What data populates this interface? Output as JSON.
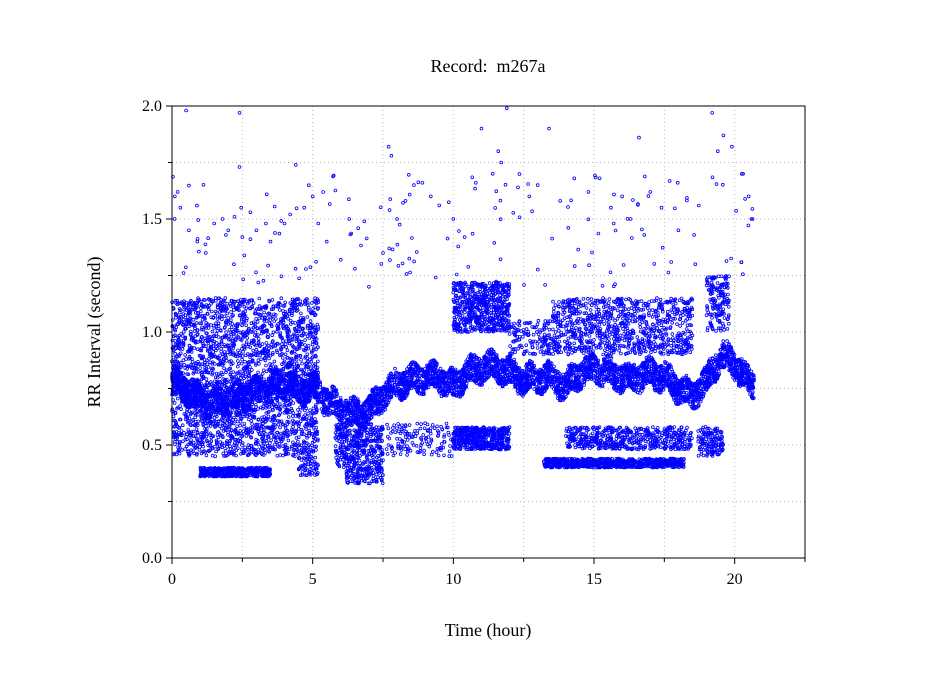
{
  "chart_data": {
    "type": "scatter",
    "title": "Record:  m267a",
    "xlabel": "Time (hour)",
    "ylabel": "RR Interval (second)",
    "xlim": [
      0,
      22.5
    ],
    "ylim": [
      0,
      2.0
    ],
    "x_ticks": [
      0,
      5,
      10,
      15,
      20
    ],
    "x_minor_ticks": [
      2.5,
      7.5,
      12.5,
      17.5,
      22.5
    ],
    "y_ticks": [
      0.0,
      0.5,
      1.0,
      1.5,
      2.0
    ],
    "y_tick_labels": [
      "0.0",
      "0.5",
      "1.0",
      "1.5",
      "2.0"
    ],
    "y_minor_ticks": [
      0.25,
      0.75,
      1.25,
      1.75
    ],
    "grid": true,
    "marker_color": "#0000ff",
    "series": [
      {
        "values_description_x_hours_y_seconds": "dense RR interval trace sampled from figure",
        "trend": [
          [
            0.0,
            0.78
          ],
          [
            0.5,
            0.75
          ],
          [
            1.0,
            0.7
          ],
          [
            1.5,
            0.68
          ],
          [
            2.0,
            0.7
          ],
          [
            2.5,
            0.72
          ],
          [
            3.0,
            0.73
          ],
          [
            3.5,
            0.75
          ],
          [
            4.0,
            0.78
          ],
          [
            4.5,
            0.74
          ],
          [
            5.0,
            0.76
          ],
          [
            5.5,
            0.7
          ],
          [
            6.0,
            0.66
          ],
          [
            6.5,
            0.64
          ],
          [
            7.0,
            0.65
          ],
          [
            7.5,
            0.72
          ],
          [
            8.0,
            0.77
          ],
          [
            8.5,
            0.79
          ],
          [
            9.0,
            0.8
          ],
          [
            9.5,
            0.8
          ],
          [
            10.0,
            0.76
          ],
          [
            10.5,
            0.82
          ],
          [
            11.0,
            0.84
          ],
          [
            11.5,
            0.85
          ],
          [
            12.0,
            0.82
          ],
          [
            12.5,
            0.79
          ],
          [
            13.0,
            0.8
          ],
          [
            13.5,
            0.8
          ],
          [
            14.0,
            0.76
          ],
          [
            14.5,
            0.82
          ],
          [
            15.0,
            0.84
          ],
          [
            15.5,
            0.82
          ],
          [
            16.0,
            0.8
          ],
          [
            16.5,
            0.8
          ],
          [
            17.0,
            0.82
          ],
          [
            17.5,
            0.8
          ],
          [
            18.0,
            0.75
          ],
          [
            18.5,
            0.72
          ],
          [
            19.0,
            0.78
          ],
          [
            19.5,
            0.9
          ],
          [
            20.0,
            0.86
          ],
          [
            20.5,
            0.78
          ],
          [
            20.7,
            0.76
          ]
        ],
        "bands": [
          {
            "x": [
              0.0,
              5.2
            ],
            "y": [
              0.45,
              1.15
            ],
            "density": 2600
          },
          {
            "x": [
              1.0,
              3.5
            ],
            "y": [
              0.36,
              0.4
            ],
            "density": 420
          },
          {
            "x": [
              4.5,
              5.2
            ],
            "y": [
              0.36,
              0.45
            ],
            "density": 60
          },
          {
            "x": [
              5.8,
              7.5
            ],
            "y": [
              0.4,
              0.6
            ],
            "density": 380
          },
          {
            "x": [
              6.2,
              7.5
            ],
            "y": [
              0.33,
              0.4
            ],
            "density": 120
          },
          {
            "x": [
              7.6,
              10.0
            ],
            "y": [
              0.45,
              0.6
            ],
            "density": 140
          },
          {
            "x": [
              10.0,
              12.0
            ],
            "y": [
              0.48,
              0.58
            ],
            "density": 480
          },
          {
            "x": [
              10.0,
              12.0
            ],
            "y": [
              1.0,
              1.22
            ],
            "density": 620
          },
          {
            "x": [
              12.0,
              13.5
            ],
            "y": [
              0.9,
              1.05
            ],
            "density": 140
          },
          {
            "x": [
              13.2,
              18.2
            ],
            "y": [
              0.4,
              0.44
            ],
            "density": 780
          },
          {
            "x": [
              13.5,
              18.5
            ],
            "y": [
              0.9,
              1.15
            ],
            "density": 900
          },
          {
            "x": [
              14.0,
              18.5
            ],
            "y": [
              0.48,
              0.58
            ],
            "density": 520
          },
          {
            "x": [
              18.7,
              19.6
            ],
            "y": [
              0.45,
              0.58
            ],
            "density": 140
          },
          {
            "x": [
              19.0,
              19.8
            ],
            "y": [
              1.0,
              1.25
            ],
            "density": 160
          }
        ],
        "sparse_points": [
          [
            0.1,
            1.6
          ],
          [
            0.2,
            1.62
          ],
          [
            0.3,
            1.55
          ],
          [
            0.5,
            1.98
          ],
          [
            0.6,
            1.45
          ],
          [
            0.9,
            1.4
          ],
          [
            1.2,
            1.35
          ],
          [
            1.5,
            1.48
          ],
          [
            1.8,
            1.5
          ],
          [
            2.0,
            1.45
          ],
          [
            2.2,
            1.3
          ],
          [
            2.4,
            1.97
          ],
          [
            2.4,
            1.73
          ],
          [
            2.5,
            1.42
          ],
          [
            3.0,
            1.45
          ],
          [
            3.5,
            1.4
          ],
          [
            4.0,
            1.48
          ],
          [
            4.2,
            1.52
          ],
          [
            4.4,
            1.74
          ],
          [
            4.7,
            1.55
          ],
          [
            5.0,
            1.6
          ],
          [
            5.2,
            1.48
          ],
          [
            5.5,
            1.4
          ],
          [
            6.0,
            1.32
          ],
          [
            6.3,
            1.5
          ],
          [
            6.5,
            1.28
          ],
          [
            7.0,
            1.2
          ],
          [
            7.5,
            1.35
          ],
          [
            7.7,
            1.82
          ],
          [
            7.8,
            1.78
          ],
          [
            8.0,
            1.5
          ],
          [
            8.3,
            1.58
          ],
          [
            8.6,
            1.65
          ],
          [
            8.9,
            1.66
          ],
          [
            9.2,
            1.6
          ],
          [
            9.5,
            1.56
          ],
          [
            10.0,
            1.5
          ],
          [
            10.4,
            1.42
          ],
          [
            10.8,
            1.66
          ],
          [
            11.0,
            1.9
          ],
          [
            11.4,
            1.7
          ],
          [
            11.6,
            1.8
          ],
          [
            11.7,
            1.75
          ],
          [
            11.9,
            1.99
          ],
          [
            12.3,
            1.64
          ],
          [
            12.7,
            1.6
          ],
          [
            13.0,
            1.65
          ],
          [
            13.4,
            1.9
          ],
          [
            13.8,
            1.58
          ],
          [
            14.3,
            1.68
          ],
          [
            14.8,
            1.62
          ],
          [
            15.2,
            1.68
          ],
          [
            15.6,
            1.55
          ],
          [
            16.0,
            1.6
          ],
          [
            16.3,
            1.5
          ],
          [
            16.6,
            1.86
          ],
          [
            17.0,
            1.62
          ],
          [
            17.4,
            1.55
          ],
          [
            18.0,
            1.45
          ],
          [
            18.6,
            1.3
          ],
          [
            19.2,
            1.97
          ],
          [
            19.4,
            1.8
          ],
          [
            19.6,
            1.87
          ],
          [
            19.9,
            1.82
          ],
          [
            20.3,
            1.7
          ],
          [
            20.5,
            1.6
          ],
          [
            20.6,
            1.5
          ]
        ]
      }
    ]
  }
}
